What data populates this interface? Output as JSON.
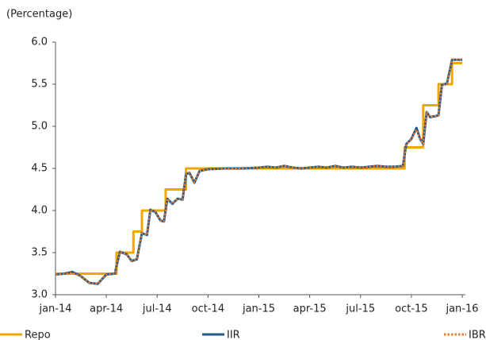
{
  "chart_data": {
    "type": "line",
    "y_label": "(Percentage)",
    "xlim": [
      0,
      24
    ],
    "xticks": [
      {
        "value": 0,
        "label": "jan-14"
      },
      {
        "value": 3,
        "label": "apr-14"
      },
      {
        "value": 6,
        "label": "jul-14"
      },
      {
        "value": 9,
        "label": "oct-14"
      },
      {
        "value": 12,
        "label": "jan-15"
      },
      {
        "value": 15,
        "label": "apr-15"
      },
      {
        "value": 18,
        "label": "jul-15"
      },
      {
        "value": 21,
        "label": "oct-15"
      },
      {
        "value": 24,
        "label": "jan-16"
      }
    ],
    "ylim": [
      3,
      6
    ],
    "yticks": [
      {
        "value": 3,
        "label": "3.0"
      },
      {
        "value": 3.5,
        "label": "3.5"
      },
      {
        "value": 4,
        "label": "4.0"
      },
      {
        "value": 4.5,
        "label": "4.5"
      },
      {
        "value": 5,
        "label": "5.0"
      },
      {
        "value": 5.5,
        "label": "5.5"
      },
      {
        "value": 6,
        "label": "6.0"
      }
    ],
    "series": [
      {
        "name": "Repo",
        "color": "#f0a800",
        "style": "solid",
        "width": 3,
        "x": [
          0,
          3.6,
          3.6,
          4.6,
          4.6,
          5.1,
          5.1,
          6.5,
          6.5,
          7.7,
          7.7,
          20.6,
          20.6,
          21.7,
          21.7,
          22.6,
          22.6,
          23.4,
          23.4,
          24
        ],
        "values": [
          3.25,
          3.25,
          3.5,
          3.5,
          3.75,
          3.75,
          4,
          4,
          4.25,
          4.25,
          4.5,
          4.5,
          4.75,
          4.75,
          5.25,
          5.25,
          5.5,
          5.5,
          5.75,
          5.75
        ]
      },
      {
        "name": "IIR",
        "color": "#1f5a8c",
        "style": "solid",
        "width": 3,
        "x": [
          0,
          0.5,
          1,
          1.5,
          2,
          2.5,
          3,
          3.5,
          3.8,
          4.2,
          4.5,
          4.8,
          5.1,
          5.4,
          5.6,
          5.9,
          6.2,
          6.4,
          6.6,
          6.9,
          7.2,
          7.5,
          7.7,
          7.9,
          8.2,
          8.5,
          9,
          10,
          11,
          12,
          12.5,
          13,
          13.5,
          14,
          14.5,
          15,
          15.5,
          16,
          16.5,
          17,
          17.5,
          18,
          18.5,
          19,
          19.5,
          20,
          20.5,
          20.7,
          21,
          21.3,
          21.5,
          21.7,
          21.9,
          22.1,
          22.4,
          22.6,
          22.8,
          23.1,
          23.4,
          23.7,
          24
        ],
        "values": [
          3.24,
          3.25,
          3.27,
          3.22,
          3.14,
          3.13,
          3.24,
          3.25,
          3.51,
          3.48,
          3.4,
          3.42,
          3.73,
          3.71,
          4.01,
          3.98,
          3.88,
          3.87,
          4.14,
          4.08,
          4.14,
          4.13,
          4.43,
          4.45,
          4.33,
          4.47,
          4.49,
          4.5,
          4.5,
          4.51,
          4.52,
          4.51,
          4.53,
          4.51,
          4.5,
          4.51,
          4.52,
          4.51,
          4.53,
          4.51,
          4.52,
          4.51,
          4.52,
          4.53,
          4.52,
          4.52,
          4.53,
          4.79,
          4.85,
          4.98,
          4.86,
          4.79,
          5.17,
          5.11,
          5.12,
          5.13,
          5.49,
          5.51,
          5.79,
          5.79,
          5.79
        ]
      },
      {
        "name": "IBR",
        "color": "#f07828",
        "style": "dotted",
        "width": 2,
        "x": [
          0,
          0.5,
          1,
          1.5,
          2,
          2.5,
          3,
          3.5,
          3.8,
          4.2,
          4.5,
          4.8,
          5.1,
          5.4,
          5.6,
          5.9,
          6.2,
          6.4,
          6.6,
          6.9,
          7.2,
          7.5,
          7.7,
          7.9,
          8.2,
          8.5,
          9,
          10,
          11,
          12,
          12.5,
          13,
          13.5,
          14,
          14.5,
          15,
          15.5,
          16,
          16.5,
          17,
          17.5,
          18,
          18.5,
          19,
          19.5,
          20,
          20.5,
          20.7,
          21,
          21.3,
          21.5,
          21.7,
          21.9,
          22.1,
          22.4,
          22.6,
          22.8,
          23.1,
          23.4,
          23.7,
          24
        ],
        "values": [
          3.24,
          3.25,
          3.26,
          3.22,
          3.14,
          3.13,
          3.24,
          3.25,
          3.51,
          3.48,
          3.4,
          3.42,
          3.73,
          3.71,
          4.01,
          3.98,
          3.88,
          3.87,
          4.14,
          4.08,
          4.14,
          4.13,
          4.43,
          4.45,
          4.33,
          4.47,
          4.49,
          4.5,
          4.5,
          4.51,
          4.52,
          4.51,
          4.53,
          4.51,
          4.5,
          4.51,
          4.52,
          4.51,
          4.53,
          4.51,
          4.52,
          4.51,
          4.52,
          4.53,
          4.52,
          4.52,
          4.53,
          4.79,
          4.85,
          4.96,
          4.86,
          4.79,
          5.17,
          5.11,
          5.12,
          5.13,
          5.49,
          5.51,
          5.79,
          5.79,
          5.79
        ]
      }
    ]
  }
}
